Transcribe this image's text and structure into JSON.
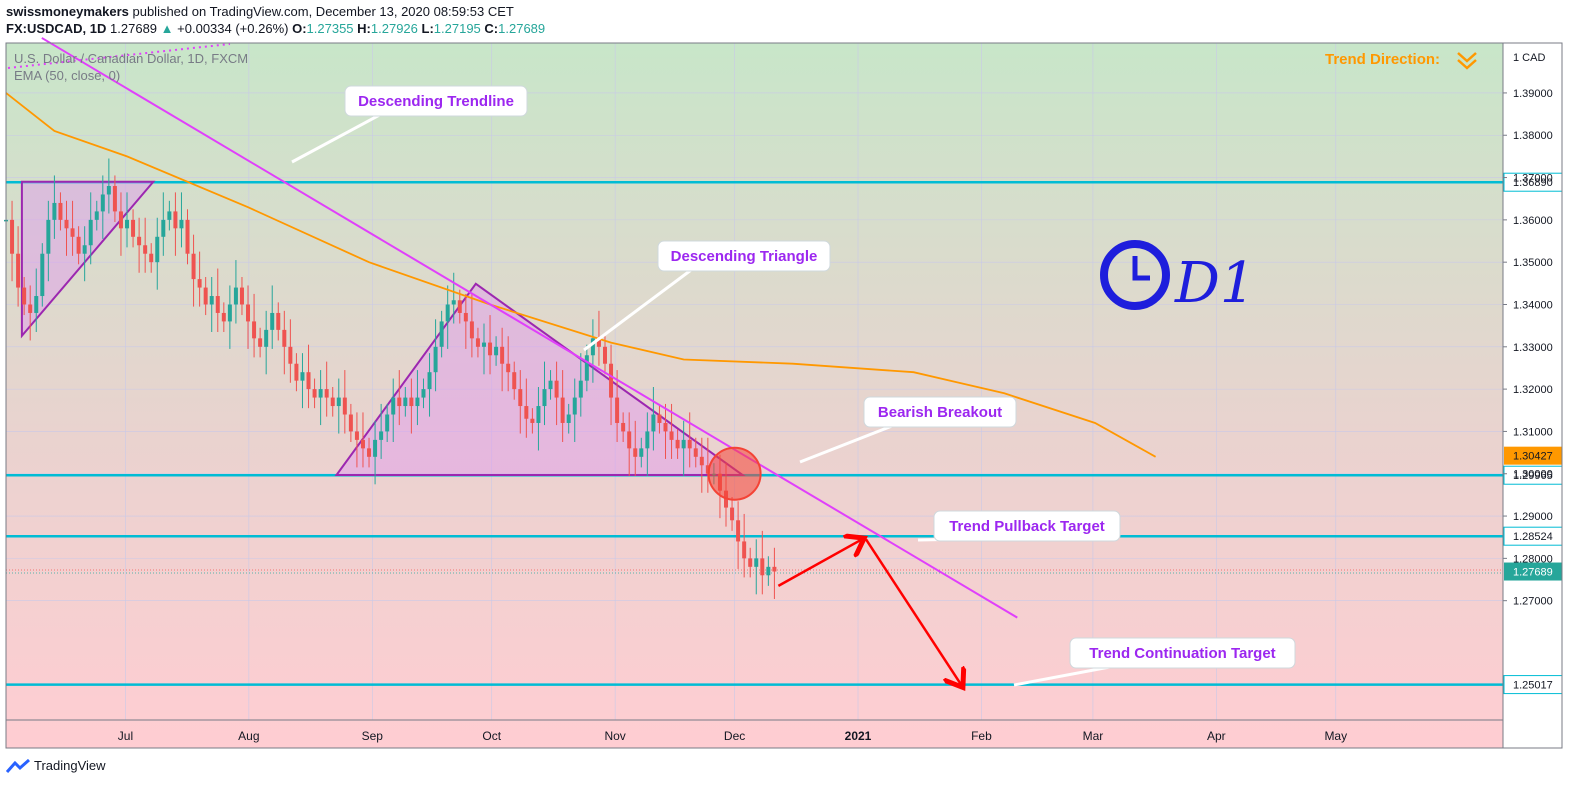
{
  "header": {
    "publisher": "swissmoneymakers",
    "published_text": "published on TradingView.com, December 13, 2020 08:59:53 CET",
    "symbol": "FX:USDCAD, 1D",
    "last": "1.27689",
    "change": "+0.00334 (+0.26%)",
    "o_label": "O:",
    "o": "1.27355",
    "h_label": "H:",
    "h": "1.27926",
    "l_label": "L:",
    "l": "1.27195",
    "c_label": "C:",
    "c": "1.27689"
  },
  "legend": {
    "instrument": "U.S. Dollar / Canadian Dollar, 1D, FXCM",
    "indicator": "EMA (50, close, 0)"
  },
  "trend_direction_label": "Trend Direction:",
  "currency": "CAD",
  "timeframe_note": "D1",
  "annotations": {
    "descending_trendline": "Descending Trendline",
    "descending_triangle": "Descending Triangle",
    "bearish_breakout": "Bearish Breakout",
    "trend_pullback_target": "Trend Pullback Target",
    "trend_continuation_target": "Trend Continuation Target"
  },
  "footer": {
    "brand": "TradingView"
  },
  "colors": {
    "bull": "#26a69a",
    "bear": "#ef5350",
    "ema": "#ff9800",
    "trendline": "#e040fb",
    "triangle": "#9c27b0",
    "level": "#00bcd4",
    "arrow": "#ff0000",
    "label_text": "#9c27f0",
    "pen": "#1e1edc"
  },
  "chart_data": {
    "type": "candlestick",
    "title": "U.S. Dollar / Canadian Dollar, 1D, FXCM",
    "xlabel": "",
    "ylabel": "",
    "x_ticks": [
      "Jul",
      "Aug",
      "Sep",
      "Oct",
      "Nov",
      "Dec",
      "2021",
      "Feb",
      "Mar",
      "Apr",
      "May"
    ],
    "y_ticks": [
      1.27,
      1.28,
      1.29,
      1.3,
      1.31,
      1.32,
      1.33,
      1.34,
      1.35,
      1.36,
      1.37,
      1.38,
      1.39
    ],
    "y_tick_labels": [
      "1.27000",
      "1.28000",
      "1.29000",
      "1.30000",
      "1.31000",
      "1.32000",
      "1.33000",
      "1.34000",
      "1.35000",
      "1.36000",
      "1.37000",
      "1.38000",
      "1.39000"
    ],
    "ylim": [
      1.2418,
      1.4018
    ],
    "xlim": [
      "2020-06-01",
      "2021-06-12"
    ],
    "horizontal_levels": [
      {
        "value": 1.3689,
        "label": "1.36890"
      },
      {
        "value": 1.29965,
        "label": "1.29965"
      },
      {
        "value": 1.28524,
        "label": "1.28524"
      },
      {
        "value": 1.25017,
        "label": "1.25017"
      }
    ],
    "ema_last": {
      "value": 1.30427,
      "label": "1.30427"
    },
    "last_price": {
      "value": 1.27689,
      "label": "1.27689"
    },
    "candles_close": [
      1.36,
      1.352,
      1.344,
      1.34,
      1.338,
      1.342,
      1.352,
      1.36,
      1.364,
      1.36,
      1.358,
      1.356,
      1.352,
      1.354,
      1.36,
      1.362,
      1.366,
      1.368,
      1.362,
      1.358,
      1.36,
      1.356,
      1.354,
      1.352,
      1.35,
      1.356,
      1.36,
      1.362,
      1.358,
      1.36,
      1.352,
      1.346,
      1.344,
      1.34,
      1.342,
      1.338,
      1.336,
      1.34,
      1.344,
      1.34,
      1.336,
      1.332,
      1.33,
      1.334,
      1.338,
      1.334,
      1.33,
      1.326,
      1.322,
      1.324,
      1.32,
      1.318,
      1.32,
      1.318,
      1.316,
      1.318,
      1.314,
      1.31,
      1.308,
      1.306,
      1.304,
      1.308,
      1.31,
      1.314,
      1.318,
      1.316,
      1.318,
      1.316,
      1.318,
      1.32,
      1.324,
      1.33,
      1.336,
      1.34,
      1.341,
      1.338,
      1.336,
      1.332,
      1.33,
      1.331,
      1.328,
      1.33,
      1.326,
      1.324,
      1.32,
      1.316,
      1.313,
      1.312,
      1.316,
      1.32,
      1.322,
      1.318,
      1.312,
      1.314,
      1.318,
      1.322,
      1.328,
      1.332,
      1.33,
      1.326,
      1.318,
      1.312,
      1.31,
      1.306,
      1.304,
      1.306,
      1.31,
      1.314,
      1.312,
      1.31,
      1.308,
      1.306,
      1.308,
      1.306,
      1.304,
      1.302,
      1.3,
      1.3,
      1.296,
      1.292,
      1.289,
      1.284,
      1.28,
      1.278,
      1.28,
      1.276,
      1.278,
      1.2769
    ],
    "ema_points": [
      [
        0,
        1.39
      ],
      [
        8,
        1.381
      ],
      [
        20,
        1.375
      ],
      [
        40,
        1.363
      ],
      [
        60,
        1.35
      ],
      [
        80,
        1.34
      ],
      [
        100,
        1.331
      ],
      [
        112,
        1.327
      ],
      [
        130,
        1.326
      ],
      [
        150,
        1.324
      ],
      [
        165,
        1.319
      ],
      [
        180,
        1.312
      ],
      [
        190,
        1.304
      ]
    ],
    "drawings": {
      "descending_trendline": [
        [
          "2020-06-10",
          1.403
        ],
        [
          "2021-02-10",
          1.266
        ]
      ],
      "descending_triangle": [
        [
          "2020-08-23",
          1.2997
        ],
        [
          "2020-09-27",
          1.3449
        ],
        [
          "2020-12-03",
          1.2997
        ]
      ],
      "small_triangle": [
        [
          "2020-06-05",
          1.369
        ],
        [
          "2020-07-08",
          1.369
        ],
        [
          "2020-06-05",
          1.3326
        ]
      ],
      "pullback_arrow": [
        [
          "2020-12-12",
          1.2735
        ],
        [
          "2021-01-02",
          1.2845
        ]
      ],
      "continuation_arrow": [
        [
          "2021-01-03",
          1.2845
        ],
        [
          "2021-01-27",
          1.25
        ]
      ]
    }
  }
}
